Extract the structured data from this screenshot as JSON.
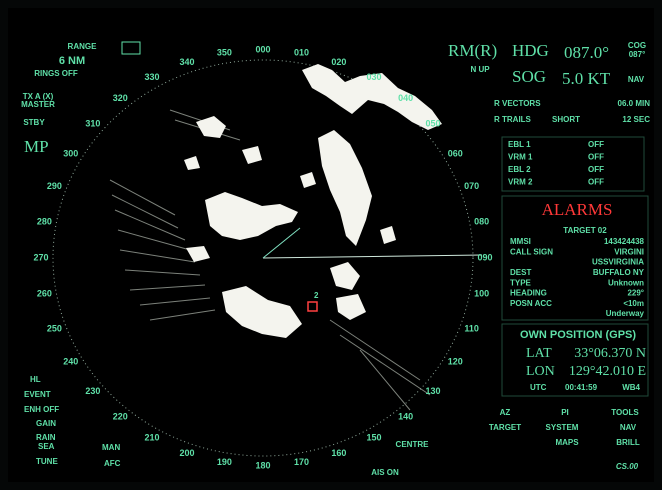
{
  "left_panel": {
    "range_label": "RANGE",
    "range_value": "6 NM",
    "rings": "RINGS OFF",
    "tx": "TX A (X)",
    "master": "MASTER",
    "stby": "STBY",
    "mode": "MP",
    "hl": "HL",
    "event": "EVENT",
    "enh": "ENH OFF",
    "gain": "GAIN",
    "rain": "RAIN",
    "sea": "SEA",
    "tune": "TUNE",
    "man": "MAN",
    "afc": "AFC"
  },
  "status": {
    "motion": "RM(R)",
    "orientation": "N UP",
    "hdg_label": "HDG",
    "hdg_value": "087.0°",
    "cog_label": "COG",
    "cog_value": "087°",
    "sog_label": "SOG",
    "sog_value": "5.0 KT",
    "sog_source": "NAV",
    "vectors_label": "R VECTORS",
    "vectors_value": "06.0 MIN",
    "trails_label": "R TRAILS",
    "trails_mode": "SHORT",
    "trails_value": "12 SEC"
  },
  "markers": [
    [
      "EBL 1",
      "OFF"
    ],
    [
      "VRM 1",
      "OFF"
    ],
    [
      "EBL 2",
      "OFF"
    ],
    [
      "VRM 2",
      "OFF"
    ]
  ],
  "alarms": {
    "title": "ALARMS",
    "target": "TARGET 02",
    "rows": [
      [
        "MMSI",
        "143424438"
      ],
      [
        "CALL SIGN",
        "VIRGINI"
      ],
      [
        "",
        "USSVIRGINIA"
      ],
      [
        "DEST",
        "BUFFALO NY"
      ],
      [
        "TYPE",
        "Unknown"
      ],
      [
        "HEADING",
        "229°"
      ],
      [
        "POSN ACC",
        "<10m"
      ],
      [
        "",
        "Underway"
      ]
    ]
  },
  "own_position": {
    "title": "OWN POSITION (GPS)",
    "lat_label": "LAT",
    "lat_value": "33°06.370 N",
    "lon_label": "LON",
    "lon_value": "129°42.010 E",
    "utc_label": "UTC",
    "utc_value": "00:41:59",
    "datum": "WB4"
  },
  "menu": {
    "az": "AZ",
    "pi": "PI",
    "tools": "TOOLS",
    "target": "TARGET",
    "system": "SYSTEM",
    "nav": "NAV",
    "maps": "MAPS",
    "brill": "BRILL",
    "centre": "CENTRE",
    "ais": "AIS ON",
    "version": "CS.00"
  },
  "bearings": [
    "000",
    "010",
    "020",
    "030",
    "040",
    "050",
    "060",
    "070",
    "080",
    "090",
    "100",
    "110",
    "120",
    "130",
    "140",
    "150",
    "160",
    "170",
    "180",
    "190",
    "200",
    "210",
    "220",
    "230",
    "240",
    "250",
    "260",
    "270",
    "280",
    "290",
    "300",
    "310",
    "320",
    "330",
    "340",
    "350"
  ],
  "target_label": "2"
}
